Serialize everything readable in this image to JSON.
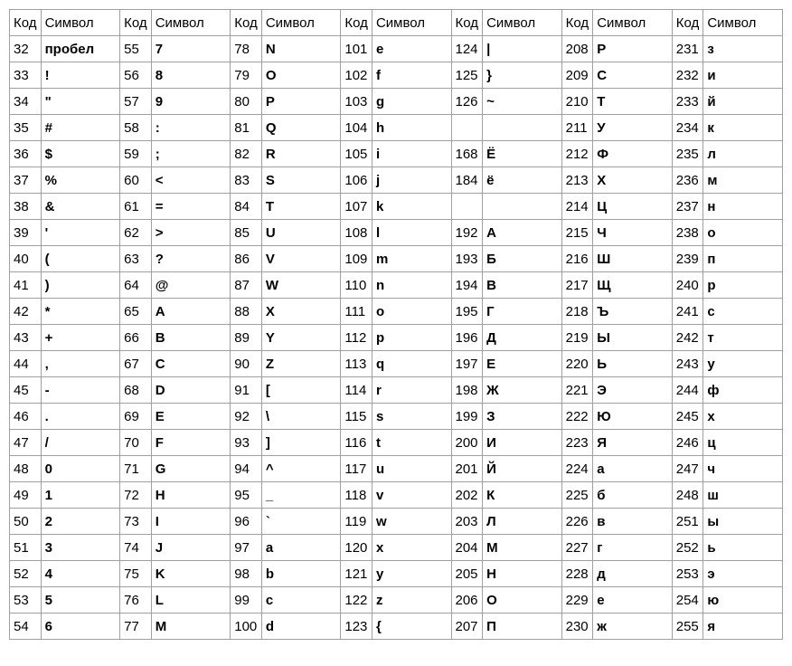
{
  "table": {
    "type": "table",
    "header_labels": {
      "code": "Код",
      "symbol": "Символ"
    },
    "column_pairs": 7,
    "border_color": "#a0a0a0",
    "background_color": "#ffffff",
    "font_size": 15,
    "symbol_font_weight": "bold",
    "code_font_weight": "normal",
    "rows": [
      [
        [
          "32",
          "пробел"
        ],
        [
          "55",
          "7"
        ],
        [
          "78",
          "N"
        ],
        [
          "101",
          "e"
        ],
        [
          "124",
          "|"
        ],
        [
          "208",
          "Р"
        ],
        [
          "231",
          "з"
        ]
      ],
      [
        [
          "33",
          "!"
        ],
        [
          "56",
          "8"
        ],
        [
          "79",
          "O"
        ],
        [
          "102",
          "f"
        ],
        [
          "125",
          "}"
        ],
        [
          "209",
          "С"
        ],
        [
          "232",
          "и"
        ]
      ],
      [
        [
          "34",
          "\""
        ],
        [
          "57",
          "9"
        ],
        [
          "80",
          "P"
        ],
        [
          "103",
          "g"
        ],
        [
          "126",
          "~"
        ],
        [
          "210",
          "Т"
        ],
        [
          "233",
          "й"
        ]
      ],
      [
        [
          "35",
          "#"
        ],
        [
          "58",
          ":"
        ],
        [
          "81",
          "Q"
        ],
        [
          "104",
          "h"
        ],
        [
          "",
          ""
        ],
        [
          "211",
          "У"
        ],
        [
          "234",
          "к"
        ]
      ],
      [
        [
          "36",
          "$"
        ],
        [
          "59",
          ";"
        ],
        [
          "82",
          "R"
        ],
        [
          "105",
          "i"
        ],
        [
          "168",
          "Ё"
        ],
        [
          "212",
          "Ф"
        ],
        [
          "235",
          "л"
        ]
      ],
      [
        [
          "37",
          "%"
        ],
        [
          "60",
          "<"
        ],
        [
          "83",
          "S"
        ],
        [
          "106",
          "j"
        ],
        [
          "184",
          "ё"
        ],
        [
          "213",
          "Х"
        ],
        [
          "236",
          "м"
        ]
      ],
      [
        [
          "38",
          "&"
        ],
        [
          "61",
          "="
        ],
        [
          "84",
          "T"
        ],
        [
          "107",
          "k"
        ],
        [
          "",
          ""
        ],
        [
          "214",
          "Ц"
        ],
        [
          "237",
          "н"
        ]
      ],
      [
        [
          "39",
          "'"
        ],
        [
          "62",
          ">"
        ],
        [
          "85",
          "U"
        ],
        [
          "108",
          "l"
        ],
        [
          "192",
          "А"
        ],
        [
          "215",
          "Ч"
        ],
        [
          "238",
          "о"
        ]
      ],
      [
        [
          "40",
          "("
        ],
        [
          "63",
          "?"
        ],
        [
          "86",
          "V"
        ],
        [
          "109",
          "m"
        ],
        [
          "193",
          "Б"
        ],
        [
          "216",
          "Ш"
        ],
        [
          "239",
          "п"
        ]
      ],
      [
        [
          "41",
          ")"
        ],
        [
          "64",
          "@"
        ],
        [
          "87",
          "W"
        ],
        [
          "110",
          "n"
        ],
        [
          "194",
          "В"
        ],
        [
          "217",
          "Щ"
        ],
        [
          "240",
          "р"
        ]
      ],
      [
        [
          "42",
          "*"
        ],
        [
          "65",
          "A"
        ],
        [
          "88",
          "X"
        ],
        [
          "111",
          "o"
        ],
        [
          "195",
          "Г"
        ],
        [
          "218",
          "Ъ"
        ],
        [
          "241",
          "с"
        ]
      ],
      [
        [
          "43",
          "+"
        ],
        [
          "66",
          "B"
        ],
        [
          "89",
          "Y"
        ],
        [
          "112",
          "p"
        ],
        [
          "196",
          "Д"
        ],
        [
          "219",
          "Ы"
        ],
        [
          "242",
          "т"
        ]
      ],
      [
        [
          "44",
          ","
        ],
        [
          "67",
          "C"
        ],
        [
          "90",
          "Z"
        ],
        [
          "113",
          "q"
        ],
        [
          "197",
          "Е"
        ],
        [
          "220",
          "Ь"
        ],
        [
          "243",
          "у"
        ]
      ],
      [
        [
          "45",
          "-"
        ],
        [
          "68",
          "D"
        ],
        [
          "91",
          "["
        ],
        [
          "114",
          "r"
        ],
        [
          "198",
          "Ж"
        ],
        [
          "221",
          "Э"
        ],
        [
          "244",
          "ф"
        ]
      ],
      [
        [
          "46",
          "."
        ],
        [
          "69",
          "E"
        ],
        [
          "92",
          "\\"
        ],
        [
          "115",
          "s"
        ],
        [
          "199",
          "З"
        ],
        [
          "222",
          "Ю"
        ],
        [
          "245",
          "х"
        ]
      ],
      [
        [
          "47",
          "/"
        ],
        [
          "70",
          "F"
        ],
        [
          "93",
          "]"
        ],
        [
          "116",
          "t"
        ],
        [
          "200",
          "И"
        ],
        [
          "223",
          "Я"
        ],
        [
          "246",
          "ц"
        ]
      ],
      [
        [
          "48",
          "0"
        ],
        [
          "71",
          "G"
        ],
        [
          "94",
          "^"
        ],
        [
          "117",
          "u"
        ],
        [
          "201",
          "Й"
        ],
        [
          "224",
          "а"
        ],
        [
          "247",
          "ч"
        ]
      ],
      [
        [
          "49",
          "1"
        ],
        [
          "72",
          "H"
        ],
        [
          "95",
          "_"
        ],
        [
          "118",
          "v"
        ],
        [
          "202",
          "К"
        ],
        [
          "225",
          "б"
        ],
        [
          "248",
          "ш"
        ]
      ],
      [
        [
          "50",
          "2"
        ],
        [
          "73",
          "I"
        ],
        [
          "96",
          "`"
        ],
        [
          "119",
          "w"
        ],
        [
          "203",
          "Л"
        ],
        [
          "226",
          "в"
        ],
        [
          "251",
          "ы"
        ]
      ],
      [
        [
          "51",
          "3"
        ],
        [
          "74",
          "J"
        ],
        [
          "97",
          "a"
        ],
        [
          "120",
          "x"
        ],
        [
          "204",
          "М"
        ],
        [
          "227",
          "г"
        ],
        [
          "252",
          "ь"
        ]
      ],
      [
        [
          "52",
          "4"
        ],
        [
          "75",
          "K"
        ],
        [
          "98",
          "b"
        ],
        [
          "121",
          "y"
        ],
        [
          "205",
          "Н"
        ],
        [
          "228",
          "д"
        ],
        [
          "253",
          "э"
        ]
      ],
      [
        [
          "53",
          "5"
        ],
        [
          "76",
          "L"
        ],
        [
          "99",
          "c"
        ],
        [
          "122",
          "z"
        ],
        [
          "206",
          "О"
        ],
        [
          "229",
          "е"
        ],
        [
          "254",
          "ю"
        ]
      ],
      [
        [
          "54",
          "6"
        ],
        [
          "77",
          "M"
        ],
        [
          "100",
          "d"
        ],
        [
          "123",
          "{"
        ],
        [
          "207",
          "П"
        ],
        [
          "230",
          "ж"
        ],
        [
          "255",
          "я"
        ]
      ]
    ]
  }
}
